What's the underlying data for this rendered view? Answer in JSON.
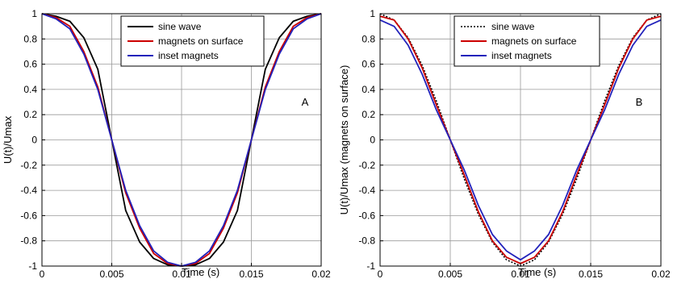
{
  "chart_data": [
    {
      "type": "line",
      "panel_label": "A",
      "ylabel": "U(t)/Umax",
      "xlabel": "Time (s)",
      "xlim": [
        0,
        0.02
      ],
      "ylim": [
        -1,
        1
      ],
      "xticks": [
        "0",
        "0.005",
        "0.01",
        "0.015",
        "0.02"
      ],
      "yticks": [
        "1",
        "0.8",
        "0.6",
        "0.4",
        "0.2",
        "0",
        "-0.2",
        "-0.4",
        "-0.6",
        "-0.8",
        "-1"
      ],
      "grid": true,
      "legend_position": "top-center",
      "x": [
        0,
        0.001,
        0.002,
        0.003,
        0.004,
        0.005,
        0.006,
        0.007,
        0.008,
        0.009,
        0.01,
        0.011,
        0.012,
        0.013,
        0.014,
        0.015,
        0.016,
        0.017,
        0.018,
        0.019,
        0.02
      ],
      "series": [
        {
          "name": "sine wave",
          "color": "#000000",
          "dash": "solid",
          "values": [
            1,
            0.98,
            0.94,
            0.81,
            0.56,
            0,
            -0.56,
            -0.81,
            -0.94,
            -0.99,
            -1,
            -0.99,
            -0.94,
            -0.81,
            -0.56,
            0,
            0.56,
            0.81,
            0.94,
            0.98,
            1
          ]
        },
        {
          "name": "magnets on surface",
          "color": "#cc0000",
          "dash": "solid",
          "values": [
            1,
            0.97,
            0.9,
            0.7,
            0.42,
            0,
            -0.42,
            -0.7,
            -0.9,
            -0.98,
            -1,
            -0.98,
            -0.9,
            -0.7,
            -0.42,
            0,
            0.42,
            0.7,
            0.9,
            0.97,
            1
          ]
        },
        {
          "name": "inset magnets",
          "color": "#2222bb",
          "dash": "solid",
          "values": [
            1,
            0.96,
            0.88,
            0.68,
            0.4,
            0,
            -0.4,
            -0.68,
            -0.88,
            -0.97,
            -1,
            -0.97,
            -0.88,
            -0.68,
            -0.4,
            0,
            0.4,
            0.68,
            0.88,
            0.96,
            1
          ]
        }
      ]
    },
    {
      "type": "line",
      "panel_label": "B",
      "ylabel": "U(t)/Umax (magnets on surface)",
      "xlabel": "Time (s)",
      "xlim": [
        0,
        0.02
      ],
      "ylim": [
        -1,
        1
      ],
      "xticks": [
        "0",
        "0.005",
        "0.01",
        "0.015",
        "0.02"
      ],
      "yticks": [
        "1",
        "0.8",
        "0.6",
        "0.4",
        "0.2",
        "0",
        "-0.2",
        "-0.4",
        "-0.6",
        "-0.8",
        "-1"
      ],
      "grid": true,
      "legend_position": "top-center",
      "x": [
        0,
        0.001,
        0.002,
        0.003,
        0.004,
        0.005,
        0.006,
        0.007,
        0.008,
        0.009,
        0.01,
        0.011,
        0.012,
        0.013,
        0.014,
        0.015,
        0.016,
        0.017,
        0.018,
        0.019,
        0.02
      ],
      "series": [
        {
          "name": "sine wave",
          "color": "#000000",
          "dash": "dotted",
          "values": [
            1,
            0.95,
            0.81,
            0.59,
            0.31,
            0,
            -0.31,
            -0.59,
            -0.81,
            -0.95,
            -1,
            -0.95,
            -0.81,
            -0.59,
            -0.31,
            0,
            0.31,
            0.59,
            0.81,
            0.95,
            1
          ]
        },
        {
          "name": "magnets on surface",
          "color": "#cc0000",
          "dash": "solid",
          "values": [
            0.98,
            0.95,
            0.8,
            0.57,
            0.28,
            0,
            -0.28,
            -0.57,
            -0.8,
            -0.93,
            -0.98,
            -0.93,
            -0.8,
            -0.57,
            -0.28,
            0,
            0.28,
            0.57,
            0.8,
            0.95,
            0.98
          ]
        },
        {
          "name": "inset magnets",
          "color": "#2222bb",
          "dash": "solid",
          "values": [
            0.95,
            0.9,
            0.75,
            0.52,
            0.24,
            0,
            -0.24,
            -0.52,
            -0.75,
            -0.88,
            -0.95,
            -0.88,
            -0.75,
            -0.52,
            -0.24,
            0,
            0.24,
            0.52,
            0.75,
            0.9,
            0.95
          ]
        }
      ]
    }
  ]
}
